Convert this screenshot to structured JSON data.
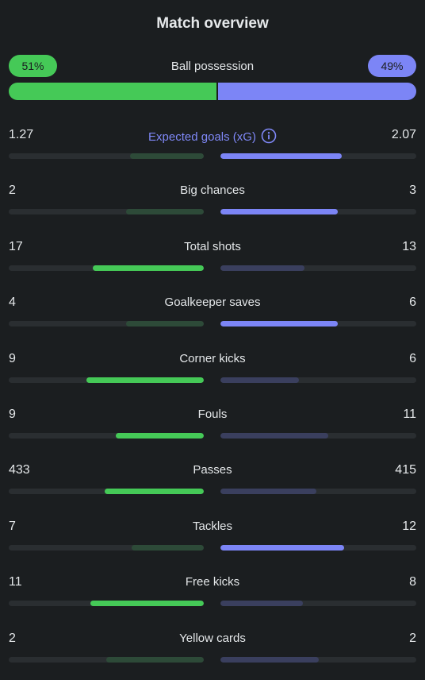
{
  "title": "Match overview",
  "colors": {
    "home_strong": "#45c957",
    "home_weak": "#2d4a38",
    "away_strong": "#7c85f6",
    "away_weak": "#3a3f5e",
    "track": "#2a2e31"
  },
  "possession": {
    "label": "Ball possession",
    "home_text": "51%",
    "away_text": "49%",
    "home_fraction": 0.51,
    "away_fraction": 0.49
  },
  "stats": [
    {
      "key": "expected-goals",
      "label": "Expected goals (xG)",
      "home": "1.27",
      "away": "2.07",
      "home_fraction": 0.38,
      "away_fraction": 0.62,
      "winner": "away",
      "accent": true,
      "info_icon": "info-icon"
    },
    {
      "key": "big-chances",
      "label": "Big chances",
      "home": "2",
      "away": "3",
      "home_fraction": 0.4,
      "away_fraction": 0.6,
      "winner": "away"
    },
    {
      "key": "total-shots",
      "label": "Total shots",
      "home": "17",
      "away": "13",
      "home_fraction": 0.57,
      "away_fraction": 0.43,
      "winner": "home"
    },
    {
      "key": "goalkeeper-saves",
      "label": "Goalkeeper saves",
      "home": "4",
      "away": "6",
      "home_fraction": 0.4,
      "away_fraction": 0.6,
      "winner": "away"
    },
    {
      "key": "corner-kicks",
      "label": "Corner kicks",
      "home": "9",
      "away": "6",
      "home_fraction": 0.6,
      "away_fraction": 0.4,
      "winner": "home"
    },
    {
      "key": "fouls",
      "label": "Fouls",
      "home": "9",
      "away": "11",
      "home_fraction": 0.45,
      "away_fraction": 0.55,
      "winner": "home"
    },
    {
      "key": "passes",
      "label": "Passes",
      "home": "433",
      "away": "415",
      "home_fraction": 0.51,
      "away_fraction": 0.49,
      "winner": "home"
    },
    {
      "key": "tackles",
      "label": "Tackles",
      "home": "7",
      "away": "12",
      "home_fraction": 0.37,
      "away_fraction": 0.63,
      "winner": "away"
    },
    {
      "key": "free-kicks",
      "label": "Free kicks",
      "home": "11",
      "away": "8",
      "home_fraction": 0.58,
      "away_fraction": 0.42,
      "winner": "home"
    },
    {
      "key": "yellow-cards",
      "label": "Yellow cards",
      "home": "2",
      "away": "2",
      "home_fraction": 0.5,
      "away_fraction": 0.5,
      "winner": "none"
    }
  ]
}
